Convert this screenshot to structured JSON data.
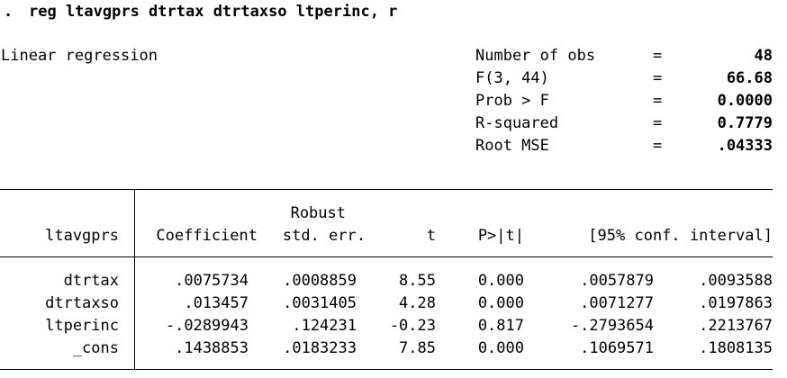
{
  "command": {
    "prompt": ".",
    "text": "reg ltavgprs dtrtax dtrtaxso ltperinc, r"
  },
  "model_title": "Linear regression",
  "stats": [
    {
      "label": "Number of obs",
      "eq": "=",
      "value": "48"
    },
    {
      "label": "F(3, 44)",
      "eq": "=",
      "value": "66.68"
    },
    {
      "label": "Prob > F",
      "eq": "=",
      "value": "0.0000"
    },
    {
      "label": "R-squared",
      "eq": "=",
      "value": "0.7779"
    },
    {
      "label": "Root MSE",
      "eq": "=",
      "value": ".04333"
    }
  ],
  "table": {
    "depvar": "ltavgprs",
    "header_top_robust": "Robust",
    "headers": {
      "coef": "Coefficient",
      "se": "std. err.",
      "t": "t",
      "p": "P>|t|",
      "ci": "[95% conf. interval]"
    },
    "rows": [
      {
        "var": "dtrtax",
        "coef": ".0075734",
        "se": ".0008859",
        "t": "8.55",
        "p": "0.000",
        "lo": ".0057879",
        "hi": ".0093588"
      },
      {
        "var": "dtrtaxso",
        "coef": ".013457",
        "se": ".0031405",
        "t": "4.28",
        "p": "0.000",
        "lo": ".0071277",
        "hi": ".0197863"
      },
      {
        "var": "ltperinc",
        "coef": "-.0289943",
        "se": ".124231",
        "t": "-0.23",
        "p": "0.817",
        "lo": "-.2793654",
        "hi": ".2213767"
      },
      {
        "var": "_cons",
        "coef": ".1438853",
        "se": ".0183233",
        "t": "7.85",
        "p": "0.000",
        "lo": ".1069571",
        "hi": ".1808135"
      }
    ]
  }
}
